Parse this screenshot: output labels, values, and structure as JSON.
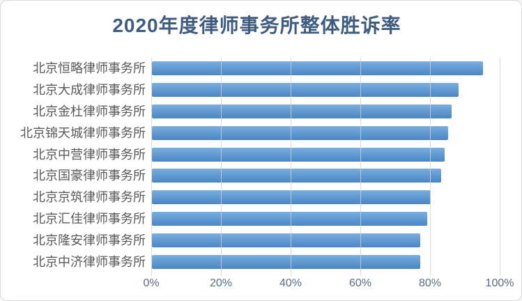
{
  "chart_data": {
    "type": "bar",
    "orientation": "horizontal",
    "title": "2020年度律师事务所整体胜诉率",
    "categories": [
      "北京恒略律师事务所",
      "北京大成律师事务所",
      "北京金杜律师事务所",
      "北京锦天城律师事务所",
      "北京中营律师事务所",
      "北京国豪律师事务所",
      "北京京筑律师事务所",
      "北京汇佳律师事务所",
      "北京隆安律师事务所",
      "北京中济律师事务所"
    ],
    "values": [
      95,
      88,
      86,
      85,
      84,
      83,
      80,
      79,
      77,
      77
    ],
    "unit": "%",
    "xlabel": "",
    "ylabel": "",
    "xlim": [
      0,
      100
    ],
    "x_tick_values": [
      0,
      20,
      40,
      60,
      80,
      100
    ],
    "x_tick_labels": [
      "0%",
      "20%",
      "40%",
      "60%",
      "80%",
      "100%"
    ],
    "grid": "vertical-on",
    "legend_position": "none",
    "colors": {
      "bar_gradient_top": "#79aedd",
      "bar_gradient_bottom": "#4a86c6",
      "title": "#3e5c80",
      "category_label": "#595959",
      "tick_label": "#5a6b82",
      "gridline": "#d9d9d9",
      "background": "#ffffff",
      "border": "#d9d9d9"
    }
  }
}
